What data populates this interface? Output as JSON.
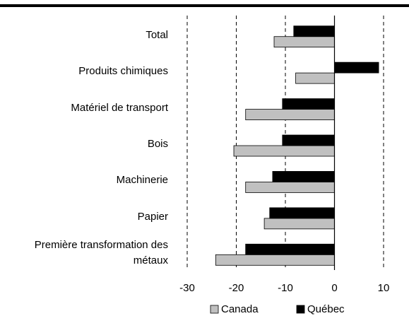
{
  "chart_data": {
    "type": "hbar",
    "categories": [
      "Total",
      "Produits chimiques",
      "Matériel de transport",
      "Bois",
      "Machinerie",
      "Papier",
      "Première transformation des métaux"
    ],
    "series": [
      {
        "name": "Canada",
        "color": "#c0c0c0",
        "values": [
          -12.3,
          -7.9,
          -18.1,
          -20.5,
          -18.1,
          -14.3,
          -24.2
        ]
      },
      {
        "name": "Québec",
        "color": "#000000",
        "values": [
          -8.3,
          9.0,
          -10.6,
          -10.6,
          -12.6,
          -13.2,
          -18.1
        ]
      }
    ],
    "xlim": [
      -30,
      10
    ],
    "xticks": [
      -30,
      -20,
      -10,
      0,
      10
    ],
    "grid": true,
    "legend": "bottom"
  }
}
